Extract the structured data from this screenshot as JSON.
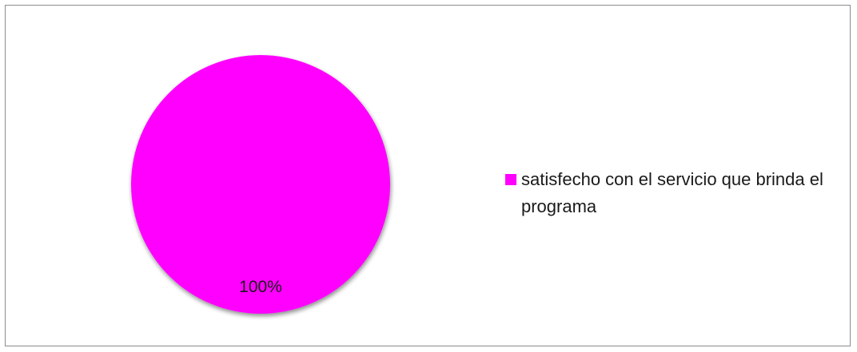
{
  "chart_data": {
    "type": "pie",
    "title": "",
    "slices": [
      {
        "label": "satisfecho con el servicio que brinda el programa",
        "value": 100,
        "data_label": "100%",
        "color": "#ff00ff"
      }
    ],
    "legend_position": "right"
  }
}
